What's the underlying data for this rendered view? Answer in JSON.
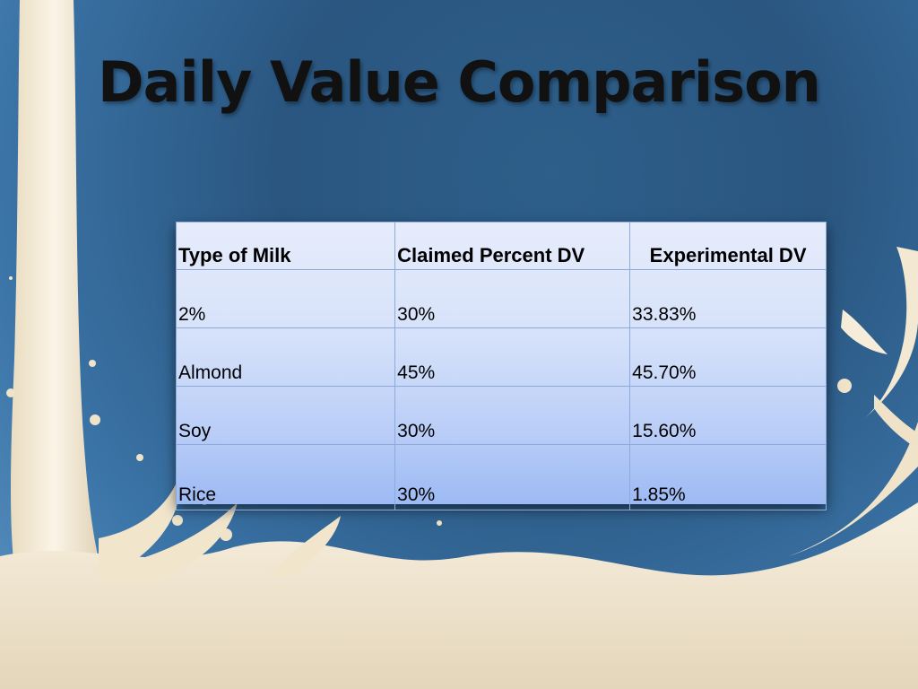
{
  "slide": {
    "title": "Daily Value Comparison"
  },
  "table": {
    "headers": [
      "Type of Milk",
      "Claimed Percent DV",
      "Experimental DV"
    ],
    "rows": [
      [
        "2%",
        "30%",
        "33.83%"
      ],
      [
        "Almond",
        "45%",
        "45.70%"
      ],
      [
        "Soy",
        "30%",
        "15.60%"
      ],
      [
        "Rice",
        "30%",
        "1.85%"
      ]
    ]
  },
  "colors": {
    "background": "#2d5f8a",
    "milk": "#f1e6cf",
    "table_fill_top": "#e6ecfb",
    "table_fill_bottom": "#9dbaf4",
    "title_text": "#111111"
  }
}
